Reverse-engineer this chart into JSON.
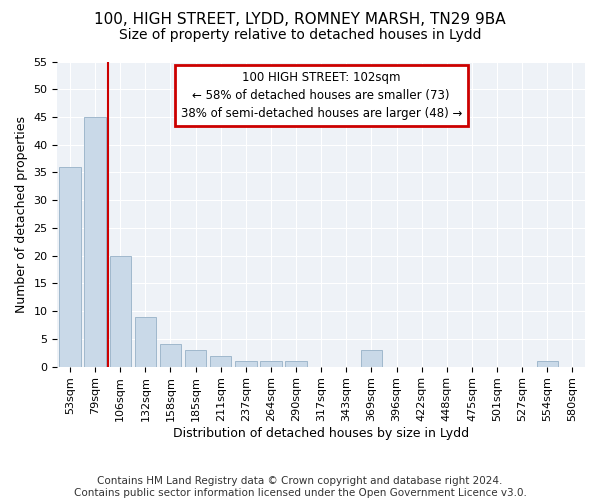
{
  "title1": "100, HIGH STREET, LYDD, ROMNEY MARSH, TN29 9BA",
  "title2": "Size of property relative to detached houses in Lydd",
  "xlabel": "Distribution of detached houses by size in Lydd",
  "ylabel": "Number of detached properties",
  "bar_labels": [
    "53sqm",
    "79sqm",
    "106sqm",
    "132sqm",
    "158sqm",
    "185sqm",
    "211sqm",
    "237sqm",
    "264sqm",
    "290sqm",
    "317sqm",
    "343sqm",
    "369sqm",
    "396sqm",
    "422sqm",
    "448sqm",
    "475sqm",
    "501sqm",
    "527sqm",
    "554sqm",
    "580sqm"
  ],
  "bar_heights": [
    36,
    45,
    20,
    9,
    4,
    3,
    2,
    1,
    1,
    1,
    0,
    0,
    3,
    0,
    0,
    0,
    0,
    0,
    0,
    1,
    0
  ],
  "bar_color": "#c9d9e8",
  "bar_edge_color": "#a0b8cc",
  "vline_color": "#cc0000",
  "annotation_text": "100 HIGH STREET: 102sqm\n← 58% of detached houses are smaller (73)\n38% of semi-detached houses are larger (48) →",
  "annotation_box_color": "#cc0000",
  "ylim": [
    0,
    55
  ],
  "yticks": [
    0,
    5,
    10,
    15,
    20,
    25,
    30,
    35,
    40,
    45,
    50,
    55
  ],
  "bg_color": "#eef2f7",
  "footer": "Contains HM Land Registry data © Crown copyright and database right 2024.\nContains public sector information licensed under the Open Government Licence v3.0.",
  "title1_fontsize": 11,
  "title2_fontsize": 10,
  "xlabel_fontsize": 9,
  "ylabel_fontsize": 9,
  "tick_fontsize": 8,
  "footer_fontsize": 7.5
}
